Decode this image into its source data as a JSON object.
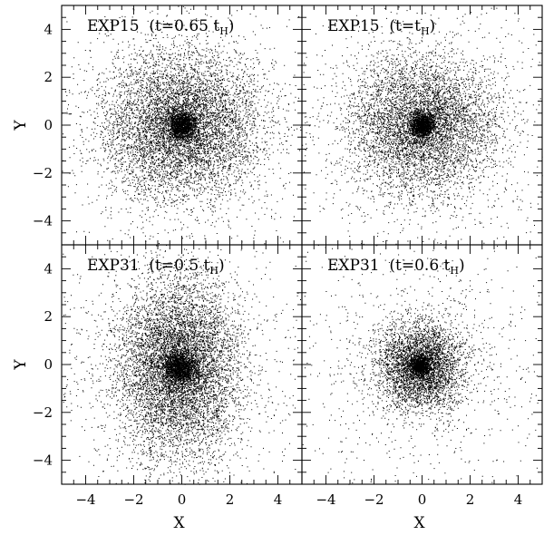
{
  "chart_data": [
    {
      "type": "scatter",
      "title": "EXP15 (t=0.65 t_H)",
      "title_main": "EXP15  (t=0.65 t",
      "title_sub": "H",
      "title_close": ")",
      "xlabel": "",
      "ylabel": "Y",
      "xlim": [
        -5,
        5
      ],
      "ylim": [
        -5,
        5
      ],
      "x_tick_labels": [],
      "y_tick_labels": [
        "4",
        "2",
        "0",
        "−2",
        "−4"
      ],
      "distribution": {
        "center": [
          0,
          0
        ],
        "core_sigma": 0.3,
        "halo_sigma": [
          1.6,
          1.5
        ],
        "outer_sigma": 2.7
      },
      "n_points": 9000
    },
    {
      "type": "scatter",
      "title": "EXP15 (t=t_H)",
      "title_main": "EXP15  (t=t",
      "title_sub": "H",
      "title_close": ")",
      "xlabel": "",
      "ylabel": "",
      "xlim": [
        -5,
        5
      ],
      "ylim": [
        -5,
        5
      ],
      "x_tick_labels": [],
      "y_tick_labels": [],
      "distribution": {
        "center": [
          0,
          0
        ],
        "core_sigma": 0.25,
        "halo_sigma": [
          1.45,
          1.4
        ],
        "outer_sigma": 3.0
      },
      "n_points": 8000
    },
    {
      "type": "scatter",
      "title": "EXP31 (t=0.5 t_H)",
      "title_main": "EXP31  (t=0.5 t",
      "title_sub": "H",
      "title_close": ")",
      "xlabel": "X",
      "ylabel": "Y",
      "xlim": [
        -5,
        5
      ],
      "ylim": [
        -5,
        5
      ],
      "x_tick_labels": [
        "−4",
        "−2",
        "0",
        "2",
        "4"
      ],
      "y_tick_labels": [
        "4",
        "2",
        "0",
        "−2",
        "−4"
      ],
      "distribution": {
        "center": [
          -0.1,
          -0.1
        ],
        "core_sigma": 0.35,
        "halo_sigma": [
          1.2,
          1.8
        ],
        "outer_sigma": 2.6
      },
      "n_points": 10000
    },
    {
      "type": "scatter",
      "title": "EXP31 (t=0.6 t_H)",
      "title_main": "EXP31  (t=0.6 t",
      "title_sub": "H",
      "title_close": ")",
      "xlabel": "X",
      "ylabel": "",
      "xlim": [
        -5,
        5
      ],
      "ylim": [
        -5,
        5
      ],
      "x_tick_labels": [
        "−4",
        "−2",
        "0",
        "2",
        "4"
      ],
      "y_tick_labels": [],
      "distribution": {
        "center": [
          -0.1,
          -0.05
        ],
        "core_sigma": 0.2,
        "halo_sigma": [
          0.9,
          0.9
        ],
        "outer_sigma": 2.8
      },
      "n_points": 6000
    }
  ]
}
